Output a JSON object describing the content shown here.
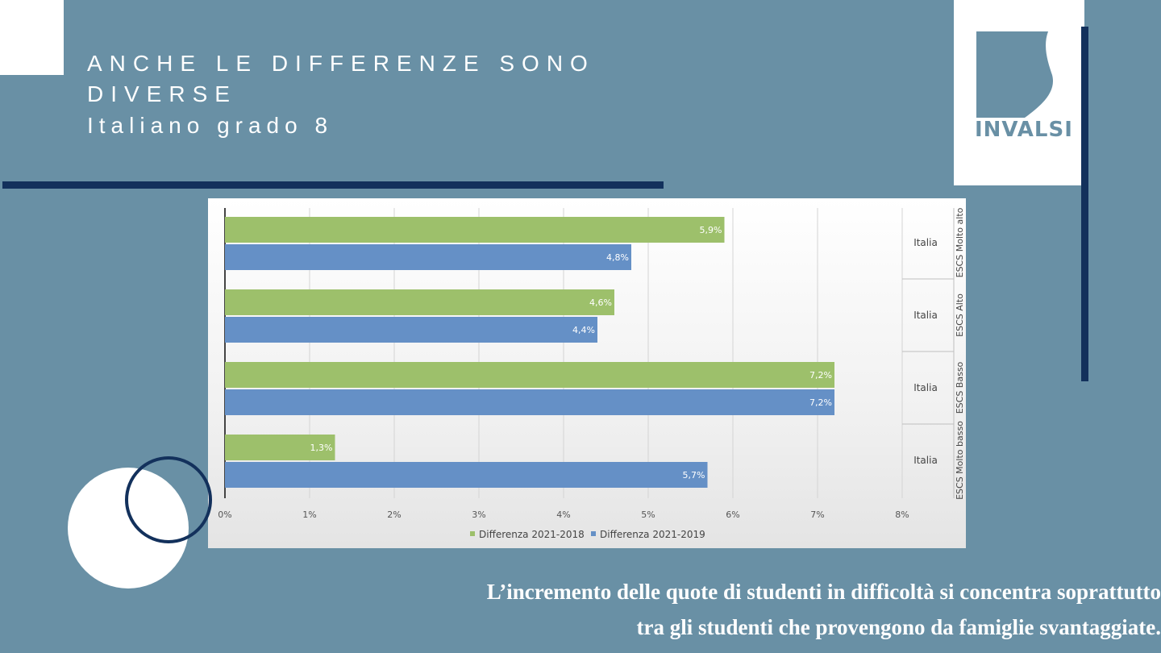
{
  "slide": {
    "title_line1": "ANCHE LE DIFFERENZE SONO",
    "title_line2": "DIVERSE",
    "subtitle": "Italiano grado 8",
    "logo_text": "INVALSI",
    "caption_line1": "L’incremento delle quote di studenti in difficoltà si concentra soprattutto",
    "caption_line2": "tra gli studenti  che provengono da famiglie svantaggiate."
  },
  "colors": {
    "background": "#6990a5",
    "navy": "#13315c",
    "series_green": "#9dc06b",
    "series_blue": "#6590c6"
  },
  "chart_data": {
    "type": "bar",
    "orientation": "horizontal",
    "groups": [
      "ESCS Molto alto",
      "ESCS Alto",
      "ESCS Basso",
      "ESCS Molto basso"
    ],
    "categories": [
      "Italia",
      "Italia",
      "Italia",
      "Italia"
    ],
    "series": [
      {
        "name": "Differenza 2021-2018",
        "values": [
          5.9,
          4.6,
          7.2,
          1.3
        ],
        "labels": [
          "5,9%",
          "4,6%",
          "7,2%",
          "1,3%"
        ]
      },
      {
        "name": "Differenza 2021-2019",
        "values": [
          4.8,
          4.4,
          7.2,
          5.7
        ],
        "labels": [
          "4,8%",
          "4,4%",
          "7,2%",
          "5,7%"
        ]
      }
    ],
    "x_ticks": [
      "0%",
      "1%",
      "2%",
      "3%",
      "4%",
      "5%",
      "6%",
      "7%",
      "8%"
    ],
    "xlim": [
      0,
      8
    ],
    "grid": true,
    "legend_position": "bottom"
  }
}
